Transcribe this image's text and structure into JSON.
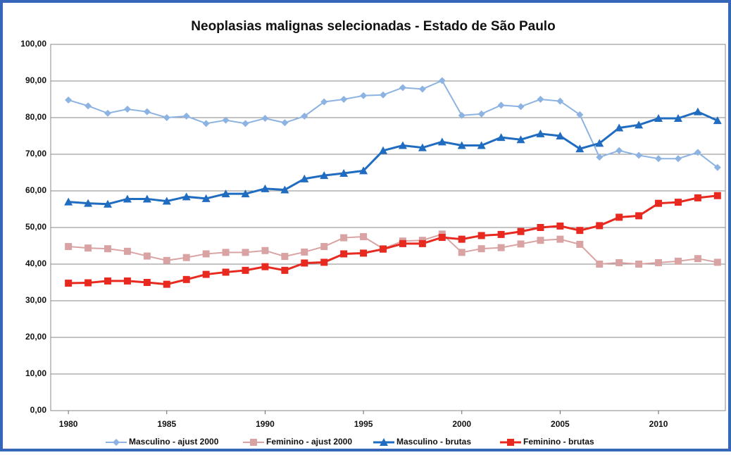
{
  "chart_data": {
    "type": "line",
    "title": "Neoplasias malignas selecionadas - Estado de São Paulo",
    "x": [
      1980,
      1981,
      1982,
      1983,
      1984,
      1985,
      1986,
      1987,
      1988,
      1989,
      1990,
      1991,
      1992,
      1993,
      1994,
      1995,
      1996,
      1997,
      1998,
      1999,
      2000,
      2001,
      2002,
      2003,
      2004,
      2005,
      2006,
      2007,
      2008,
      2009,
      2010,
      2011,
      2012,
      2013
    ],
    "xlim": [
      1979.1,
      2013.4
    ],
    "xticks": [
      1980,
      1985,
      1990,
      1995,
      2000,
      2005,
      2010
    ],
    "ylim": [
      0,
      100
    ],
    "yticks": [
      {
        "value": 0,
        "label": "0,00"
      },
      {
        "value": 10,
        "label": "10,00"
      },
      {
        "value": 20,
        "label": "20,00"
      },
      {
        "value": 30,
        "label": "30,00"
      },
      {
        "value": 40,
        "label": "40,00"
      },
      {
        "value": 50,
        "label": "50,00"
      },
      {
        "value": 60,
        "label": "60,00"
      },
      {
        "value": 70,
        "label": "70,00"
      },
      {
        "value": 80,
        "label": "80,00"
      },
      {
        "value": 90,
        "label": "90,00"
      },
      {
        "value": 100,
        "label": "100,00"
      }
    ],
    "grid": true,
    "legend": "bottom",
    "series": [
      {
        "name": "Masculino - ajust 2000",
        "color": "#8db3e2",
        "marker": "diamond",
        "values": [
          84.8,
          83.2,
          81.2,
          82.3,
          81.6,
          80.0,
          80.4,
          78.4,
          79.3,
          78.4,
          79.8,
          78.6,
          80.4,
          84.3,
          85.0,
          86.0,
          86.2,
          88.2,
          87.8,
          90.1,
          80.6,
          81.0,
          83.4,
          83.0,
          85.0,
          84.5,
          80.8,
          69.2,
          71.0,
          69.7,
          68.8,
          68.8,
          70.5,
          66.4
        ]
      },
      {
        "name": "Feminino - ajust 2000",
        "color": "#d9a3a3",
        "marker": "square",
        "values": [
          44.8,
          44.4,
          44.2,
          43.5,
          42.2,
          41.0,
          41.8,
          42.8,
          43.2,
          43.2,
          43.7,
          42.1,
          43.3,
          44.8,
          47.2,
          47.5,
          44.2,
          46.3,
          46.5,
          48.2,
          43.2,
          44.2,
          44.5,
          45.5,
          46.5,
          46.8,
          45.4,
          40.0,
          40.4,
          40.0,
          40.4,
          40.8,
          41.5,
          40.5
        ]
      },
      {
        "name": "Masculino - brutas",
        "color": "#1f6cc0",
        "marker": "triangle",
        "values": [
          57.0,
          56.6,
          56.4,
          57.8,
          57.8,
          57.2,
          58.4,
          57.9,
          59.2,
          59.2,
          60.6,
          60.3,
          63.3,
          64.2,
          64.8,
          65.5,
          71.0,
          72.4,
          71.8,
          73.4,
          72.4,
          72.4,
          74.6,
          74.0,
          75.6,
          75.0,
          71.5,
          73.0,
          77.2,
          78.0,
          79.8,
          79.8,
          81.6,
          79.2
        ]
      },
      {
        "name": "Feminino - brutas",
        "color": "#e8291f",
        "marker": "square",
        "values": [
          34.8,
          34.9,
          35.4,
          35.4,
          35.0,
          34.5,
          35.8,
          37.2,
          37.8,
          38.3,
          39.3,
          38.3,
          40.3,
          40.5,
          42.8,
          43.0,
          44.1,
          45.6,
          45.6,
          47.3,
          46.8,
          47.8,
          48.1,
          48.9,
          50.0,
          50.4,
          49.2,
          50.5,
          52.8,
          53.2,
          56.6,
          56.9,
          58.1,
          58.7
        ]
      }
    ]
  }
}
